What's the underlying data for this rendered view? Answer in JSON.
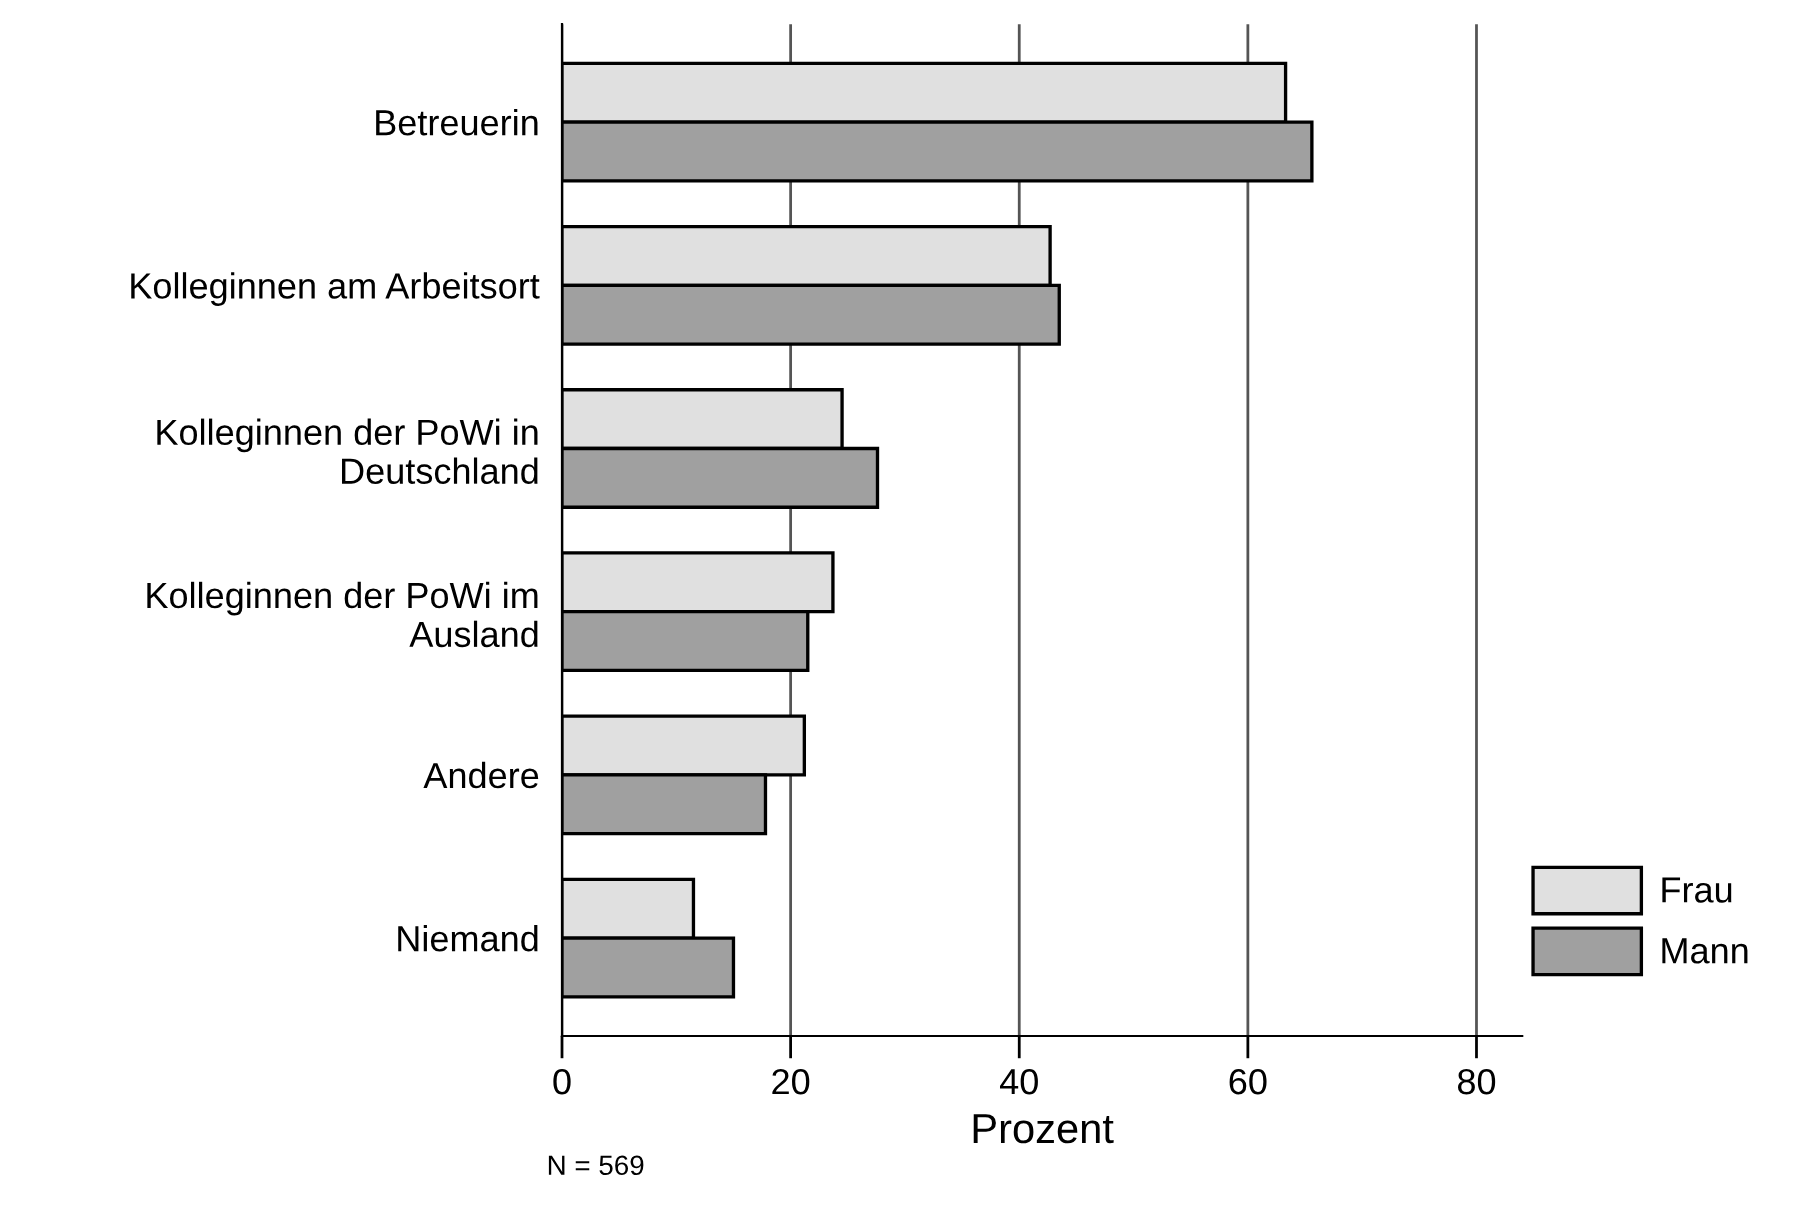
{
  "chart_data": {
    "type": "bar",
    "orientation": "horizontal",
    "xlabel": "Prozent",
    "categories": [
      "Betreuerin",
      "Kolleginnen am Arbeitsort",
      "Kolleginnen der PoWi in\nDeutschland",
      "Kolleginnen der PoWi im\nAusland",
      "Andere",
      "Niemand"
    ],
    "series": [
      {
        "name": "Frau",
        "color": "#e0e0e0",
        "values": [
          63.3,
          42.7,
          24.5,
          23.7,
          21.2,
          11.5
        ]
      },
      {
        "name": "Mann",
        "color": "#a0a0a0",
        "values": [
          65.6,
          43.5,
          27.6,
          21.5,
          17.8,
          15.0
        ]
      }
    ],
    "xlim": [
      0,
      84
    ],
    "xticks": [
      0,
      20,
      40,
      60,
      80
    ],
    "grid": "x",
    "legend": "bottom right",
    "annotations": [
      "N = 569"
    ]
  }
}
